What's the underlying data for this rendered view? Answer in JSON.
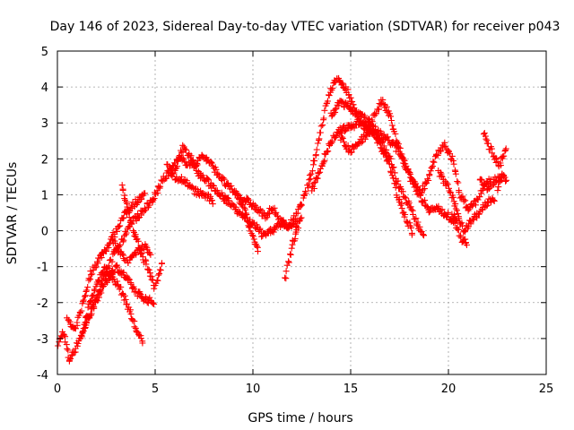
{
  "chart_data": {
    "type": "scatter",
    "title": "Day 146 of 2023, Sidereal Day-to-day VTEC variation (SDTVAR) for receiver p043",
    "xlabel": "GPS time / hours",
    "ylabel": "SDTVAR / TECUs",
    "xlim": [
      0,
      25
    ],
    "ylim": [
      -4,
      5
    ],
    "xticks": [
      0,
      5,
      10,
      15,
      20,
      25
    ],
    "yticks": [
      -4,
      -3,
      -2,
      -1,
      0,
      1,
      2,
      3,
      4,
      5
    ],
    "grid": true,
    "marker": "+",
    "series": [
      {
        "name": "SDTVAR",
        "color": "#ff0000",
        "tracks": [
          [
            [
              0.0,
              -3.2
            ],
            [
              0.3,
              -2.8
            ],
            [
              0.6,
              -3.6
            ],
            [
              0.9,
              -3.3
            ],
            [
              1.3,
              -2.8
            ],
            [
              1.7,
              -2.3
            ],
            [
              2.1,
              -1.7
            ],
            [
              2.5,
              -1.2
            ],
            [
              2.9,
              -0.6
            ],
            [
              3.3,
              -0.3
            ],
            [
              3.7,
              0.2
            ],
            [
              4.1,
              0.4
            ],
            [
              4.5,
              0.6
            ],
            [
              5.0,
              1.0
            ]
          ],
          [
            [
              0.5,
              -2.5
            ],
            [
              0.9,
              -2.8
            ],
            [
              1.3,
              -2.0
            ],
            [
              1.7,
              -1.2
            ],
            [
              2.1,
              -0.8
            ],
            [
              2.6,
              -0.4
            ],
            [
              3.1,
              0.1
            ],
            [
              3.5,
              0.5
            ],
            [
              4.0,
              0.8
            ],
            [
              4.5,
              1.0
            ]
          ],
          [
            [
              1.2,
              -3.0
            ],
            [
              1.6,
              -2.1
            ],
            [
              2.0,
              -1.5
            ],
            [
              2.4,
              -1.0
            ],
            [
              2.8,
              -1.3
            ],
            [
              3.2,
              -1.6
            ],
            [
              3.6,
              -2.1
            ],
            [
              4.0,
              -2.7
            ],
            [
              4.4,
              -3.2
            ]
          ],
          [
            [
              1.5,
              -2.5
            ],
            [
              2.0,
              -1.9
            ],
            [
              2.5,
              -1.4
            ],
            [
              3.0,
              -1.0
            ],
            [
              3.5,
              -1.3
            ],
            [
              4.0,
              -1.7
            ],
            [
              4.5,
              -1.9
            ],
            [
              5.0,
              -2.0
            ]
          ],
          [
            [
              2.8,
              -0.2
            ],
            [
              3.2,
              -0.6
            ],
            [
              3.6,
              -0.9
            ],
            [
              4.0,
              -0.6
            ],
            [
              4.4,
              -0.4
            ],
            [
              4.8,
              -0.7
            ]
          ],
          [
            [
              3.3,
              1.3
            ],
            [
              3.6,
              0.6
            ],
            [
              3.9,
              0.0
            ],
            [
              4.2,
              -0.5
            ],
            [
              4.6,
              -1.0
            ],
            [
              5.0,
              -1.6
            ],
            [
              5.4,
              -0.8
            ]
          ],
          [
            [
              5.0,
              1.0
            ],
            [
              5.4,
              1.4
            ],
            [
              5.8,
              1.7
            ],
            [
              6.2,
              2.0
            ],
            [
              6.6,
              1.9
            ],
            [
              7.0,
              1.8
            ],
            [
              7.4,
              2.1
            ],
            [
              7.8,
              1.9
            ],
            [
              8.2,
              1.6
            ],
            [
              8.6,
              1.3
            ],
            [
              9.0,
              1.1
            ],
            [
              9.4,
              0.9
            ],
            [
              9.8,
              0.8
            ],
            [
              10.2,
              0.6
            ],
            [
              10.6,
              0.4
            ],
            [
              11.0,
              0.6
            ],
            [
              11.4,
              0.3
            ],
            [
              11.8,
              0.1
            ],
            [
              12.2,
              0.4
            ],
            [
              12.6,
              0.9
            ],
            [
              13.0,
              1.6
            ],
            [
              13.4,
              2.6
            ],
            [
              13.8,
              3.6
            ],
            [
              14.2,
              4.2
            ],
            [
              14.6,
              4.1
            ],
            [
              15.0,
              3.7
            ],
            [
              15.4,
              3.1
            ],
            [
              15.8,
              2.8
            ],
            [
              16.2,
              3.2
            ],
            [
              16.6,
              3.6
            ],
            [
              17.0,
              3.2
            ],
            [
              17.4,
              2.4
            ],
            [
              17.8,
              1.8
            ],
            [
              18.2,
              1.3
            ],
            [
              18.6,
              1.1
            ],
            [
              19.0,
              1.5
            ],
            [
              19.4,
              2.1
            ],
            [
              19.8,
              2.4
            ],
            [
              20.2,
              2.0
            ],
            [
              20.6,
              1.0
            ],
            [
              21.0,
              0.6
            ],
            [
              21.4,
              0.8
            ],
            [
              21.8,
              1.2
            ],
            [
              22.2,
              1.5
            ]
          ],
          [
            [
              6.0,
              1.6
            ],
            [
              6.4,
              2.3
            ],
            [
              6.8,
              2.1
            ],
            [
              7.2,
              1.6
            ],
            [
              7.6,
              1.4
            ],
            [
              8.0,
              1.2
            ],
            [
              8.4,
              1.0
            ],
            [
              8.8,
              0.9
            ]
          ],
          [
            [
              5.6,
              1.8
            ],
            [
              6.0,
              1.5
            ],
            [
              6.5,
              1.4
            ],
            [
              7.0,
              1.1
            ],
            [
              7.5,
              1.0
            ],
            [
              8.0,
              0.8
            ]
          ],
          [
            [
              8.5,
              0.9
            ],
            [
              9.0,
              0.7
            ],
            [
              9.5,
              0.4
            ],
            [
              10.0,
              0.2
            ],
            [
              10.5,
              -0.1
            ],
            [
              11.0,
              0.0
            ],
            [
              11.5,
              0.2
            ],
            [
              12.0,
              0.1
            ],
            [
              12.5,
              0.3
            ]
          ],
          [
            [
              9.2,
              1.0
            ],
            [
              9.6,
              0.5
            ],
            [
              10.0,
              -0.2
            ],
            [
              10.3,
              -0.6
            ]
          ],
          [
            [
              12.3,
              0.0
            ],
            [
              12.0,
              -0.4
            ],
            [
              11.8,
              -0.9
            ],
            [
              11.6,
              -1.5
            ]
          ],
          [
            [
              13.0,
              1.1
            ],
            [
              13.5,
              1.8
            ],
            [
              14.0,
              2.5
            ],
            [
              14.5,
              2.8
            ],
            [
              15.0,
              2.9
            ],
            [
              15.5,
              3.0
            ],
            [
              16.0,
              2.8
            ],
            [
              16.5,
              2.7
            ],
            [
              17.0,
              2.5
            ],
            [
              17.5,
              2.2
            ],
            [
              18.0,
              1.6
            ],
            [
              18.5,
              1.0
            ],
            [
              19.0,
              0.6
            ],
            [
              19.5,
              0.6
            ],
            [
              20.0,
              0.4
            ],
            [
              20.5,
              0.2
            ]
          ],
          [
            [
              14.0,
              3.2
            ],
            [
              14.5,
              3.6
            ],
            [
              15.0,
              3.4
            ],
            [
              15.5,
              3.2
            ],
            [
              16.0,
              3.0
            ],
            [
              16.5,
              2.6
            ],
            [
              17.0,
              2.0
            ],
            [
              17.5,
              1.2
            ],
            [
              18.0,
              0.7
            ],
            [
              18.4,
              0.2
            ],
            [
              18.8,
              -0.1
            ]
          ],
          [
            [
              14.5,
              2.6
            ],
            [
              15.0,
              2.2
            ],
            [
              15.5,
              2.5
            ],
            [
              16.0,
              2.8
            ],
            [
              16.5,
              2.4
            ],
            [
              17.0,
              1.8
            ],
            [
              17.4,
              1.0
            ],
            [
              17.8,
              0.4
            ],
            [
              18.2,
              -0.1
            ]
          ],
          [
            [
              19.5,
              1.6
            ],
            [
              20.0,
              1.2
            ],
            [
              20.4,
              0.6
            ],
            [
              20.8,
              0.0
            ],
            [
              21.2,
              0.3
            ],
            [
              21.6,
              0.5
            ],
            [
              22.0,
              0.8
            ],
            [
              22.4,
              0.9
            ]
          ],
          [
            [
              20.2,
              0.5
            ],
            [
              20.6,
              -0.2
            ],
            [
              21.0,
              -0.4
            ]
          ],
          [
            [
              21.8,
              2.7
            ],
            [
              22.2,
              2.2
            ],
            [
              22.6,
              1.8
            ],
            [
              23.0,
              2.3
            ]
          ],
          [
            [
              21.6,
              1.4
            ],
            [
              22.0,
              1.2
            ],
            [
              22.4,
              1.4
            ],
            [
              22.8,
              1.5
            ]
          ],
          [
            [
              22.5,
              1.2
            ],
            [
              22.8,
              1.6
            ],
            [
              23.0,
              1.3
            ]
          ]
        ]
      }
    ]
  }
}
